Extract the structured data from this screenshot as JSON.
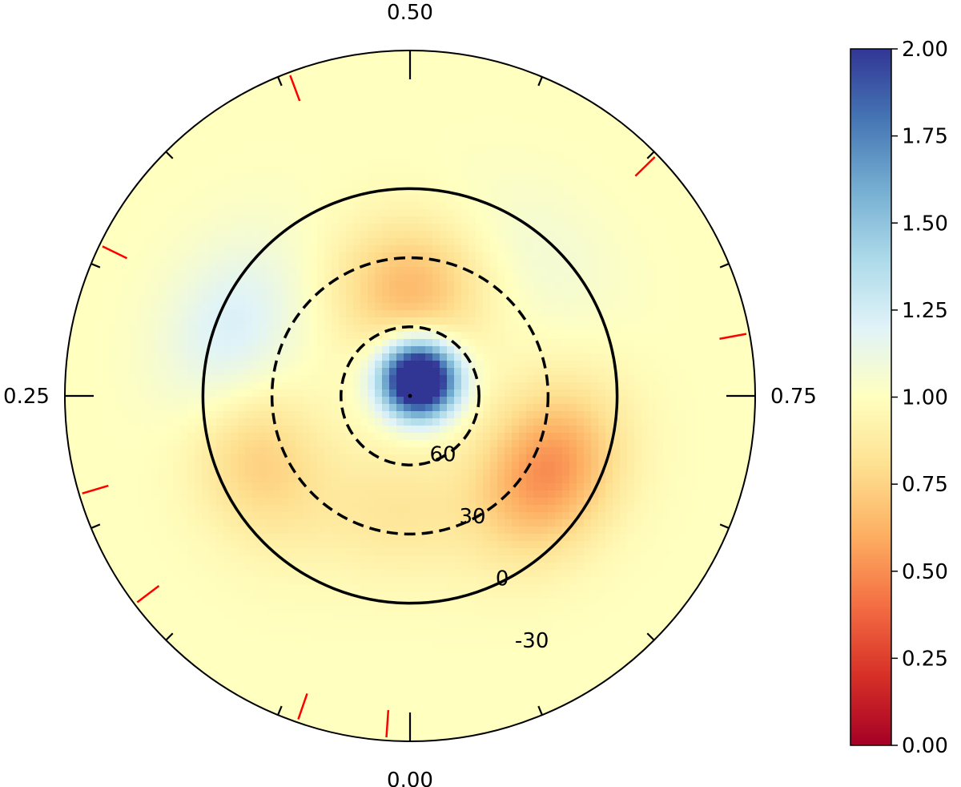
{
  "chart_data": {
    "type": "heatmap",
    "projection": "polar",
    "phase_labels": [
      {
        "text": "0.50",
        "phase": 0.5
      },
      {
        "text": "0.25",
        "phase": 0.25
      },
      {
        "text": "0.75",
        "phase": 0.75
      },
      {
        "text": "0.00",
        "phase": 0.0
      }
    ],
    "phase_ticks": [
      0,
      0.0625,
      0.125,
      0.1875,
      0.25,
      0.3125,
      0.375,
      0.4375,
      0.5,
      0.5625,
      0.625,
      0.6875,
      0.75,
      0.8125,
      0.875,
      0.9375
    ],
    "observed_phase_marks": [
      0.011,
      0.053,
      0.147,
      0.204,
      0.322,
      0.443,
      0.627,
      0.721
    ],
    "latitude_circles": [
      {
        "latitude": 0,
        "label": "0",
        "style": "solid"
      },
      {
        "latitude": 30,
        "label": "30",
        "style": "dashed"
      },
      {
        "latitude": 60,
        "label": "60",
        "style": "dashed"
      },
      {
        "latitude": -30,
        "label": "-30",
        "style": "none"
      }
    ],
    "outer_latitude": -60,
    "features": [
      {
        "name": "polar spot",
        "latitude": 82,
        "phase": 0.58,
        "value": 2.0
      },
      {
        "name": "spot",
        "latitude": 8,
        "phase": 0.3,
        "value": 1.25
      },
      {
        "name": "spot",
        "latitude": 43,
        "phase": 0.5,
        "value": 0.65
      },
      {
        "name": "spot",
        "latitude": 22,
        "phase": 0.83,
        "value": 0.5
      },
      {
        "name": "spot",
        "latitude": 18,
        "phase": 0.19,
        "value": 0.72
      },
      {
        "name": "spot",
        "latitude": 8,
        "phase": 0.62,
        "value": 1.08
      },
      {
        "name": "spot",
        "latitude": 40,
        "phase": 0.02,
        "value": 0.85
      }
    ],
    "colorbar": {
      "min": 0.0,
      "max": 2.0,
      "ticks": [
        "0.00",
        "0.25",
        "0.50",
        "0.75",
        "1.00",
        "1.25",
        "1.50",
        "1.75",
        "2.00"
      ],
      "colormap": "RdYlBu",
      "colors": [
        "#a50026",
        "#d73027",
        "#f46d43",
        "#fdae61",
        "#fee090",
        "#ffffbf",
        "#e0f3f8",
        "#abd9e9",
        "#74add1",
        "#4575b4",
        "#313695"
      ]
    }
  }
}
